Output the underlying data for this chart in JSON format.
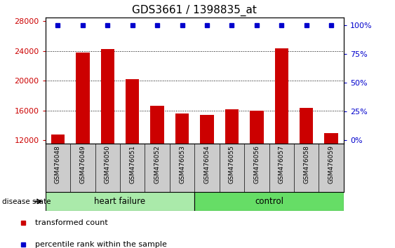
{
  "title": "GDS3661 / 1398835_at",
  "categories": [
    "GSM476048",
    "GSM476049",
    "GSM476050",
    "GSM476051",
    "GSM476052",
    "GSM476053",
    "GSM476054",
    "GSM476055",
    "GSM476056",
    "GSM476057",
    "GSM476058",
    "GSM476059"
  ],
  "bar_values": [
    12800,
    23800,
    24200,
    20200,
    16600,
    15600,
    15400,
    16100,
    16000,
    24300,
    16300,
    12900
  ],
  "percentile_values": [
    100,
    100,
    100,
    100,
    100,
    100,
    100,
    100,
    100,
    100,
    100,
    100
  ],
  "bar_color": "#cc0000",
  "percentile_color": "#0000cc",
  "ylim_left": [
    11500,
    28500
  ],
  "ylim_right": [
    -3.5,
    107
  ],
  "yticks_left": [
    12000,
    16000,
    20000,
    24000,
    28000
  ],
  "yticks_right": [
    0,
    25,
    50,
    75,
    100
  ],
  "dotted_gridlines": [
    16000,
    20000,
    24000
  ],
  "heart_failure_indices": [
    0,
    1,
    2,
    3,
    4,
    5
  ],
  "control_indices": [
    6,
    7,
    8,
    9,
    10,
    11
  ],
  "heart_failure_label": "heart failure",
  "control_label": "control",
  "disease_state_label": "disease state",
  "hf_color": "#aaeaaa",
  "ctrl_color": "#66dd66",
  "legend_items": [
    {
      "label": "transformed count",
      "color": "#cc0000"
    },
    {
      "label": "percentile rank within the sample",
      "color": "#0000cc"
    }
  ],
  "bg_color": "#ffffff",
  "tick_label_color_left": "#cc0000",
  "tick_label_color_right": "#0000cc",
  "bar_width": 0.55,
  "label_bg_color": "#cccccc",
  "title_fontsize": 11
}
